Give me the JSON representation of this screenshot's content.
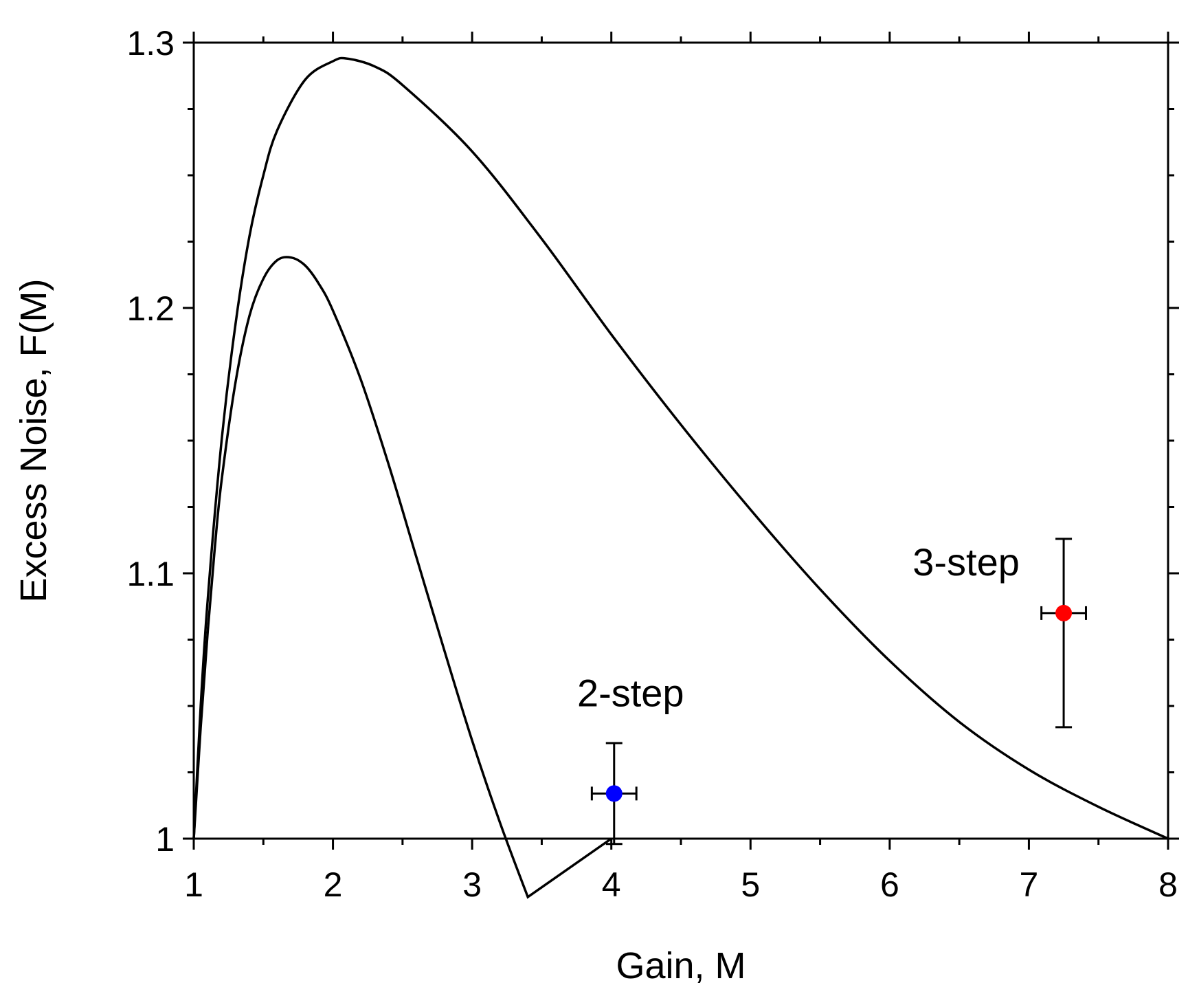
{
  "chart_data": {
    "type": "line",
    "xlabel": "Gain, M",
    "ylabel": "Excess Noise, F(M)",
    "xlim": [
      1,
      8
    ],
    "ylim": [
      1,
      1.3
    ],
    "x_ticks": [
      1,
      2,
      3,
      4,
      5,
      6,
      7,
      8
    ],
    "x_tick_labels": [
      "1",
      "2",
      "3",
      "4",
      "5",
      "6",
      "7",
      "8"
    ],
    "y_ticks": [
      1,
      1.1,
      1.2,
      1.3
    ],
    "y_tick_labels": [
      "1",
      "1.1",
      "1.2",
      "1.3"
    ],
    "grid": false,
    "line_color": "#000000",
    "series": [
      {
        "x": [
          1,
          1.05,
          1.1,
          1.15,
          1.2,
          1.3,
          1.4,
          1.5,
          1.6,
          1.7,
          1.8,
          1.9,
          2.0,
          2.2,
          2.4,
          2.6,
          2.8,
          3.0,
          3.2,
          3.4,
          3.6,
          3.8,
          4.0
        ],
        "y": [
          1.0,
          1.042,
          1.078,
          1.109,
          1.135,
          1.172,
          1.197,
          1.211,
          1.218,
          1.219,
          1.216,
          1.209,
          1.199,
          1.173,
          1.141,
          1.106,
          1.071,
          1.037,
          1.006,
          0.978,
          0.953,
          0.978,
          1.0
        ]
      },
      {
        "x": [
          1,
          1.05,
          1.1,
          1.2,
          1.3,
          1.4,
          1.5,
          1.6,
          1.8,
          2.0,
          2.1,
          2.3,
          2.5,
          3.0,
          3.5,
          4.0,
          4.5,
          5.0,
          5.5,
          6.0,
          6.5,
          7.0,
          7.5,
          8.0
        ],
        "y": [
          1.0,
          1.05,
          1.09,
          1.15,
          1.194,
          1.227,
          1.25,
          1.267,
          1.286,
          1.293,
          1.294,
          1.291,
          1.284,
          1.259,
          1.226,
          1.19,
          1.156,
          1.124,
          1.094,
          1.067,
          1.044,
          1.026,
          1.012,
          1.0
        ]
      }
    ],
    "points": [
      {
        "label": "2-step",
        "x": 4.02,
        "y": 1.017,
        "xerr": 0.16,
        "yerr_low": 0.019,
        "yerr_high": 0.019,
        "color": "#0000ff"
      },
      {
        "label": "3-step",
        "x": 7.25,
        "y": 1.085,
        "xerr": 0.16,
        "yerr_low": 0.043,
        "yerr_high": 0.028,
        "color": "#ff0000"
      }
    ]
  }
}
